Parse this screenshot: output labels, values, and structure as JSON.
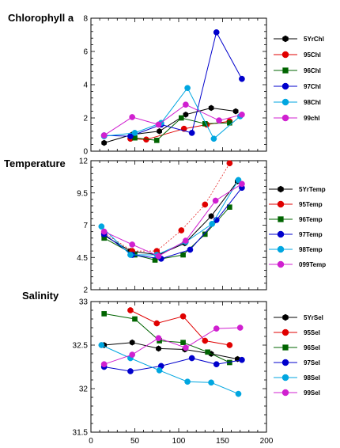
{
  "chart_data": [
    {
      "type": "line",
      "title": "Chlorophyll a",
      "xlim": [
        0,
        200
      ],
      "ylim": [
        0,
        8
      ],
      "yticks": [
        "0",
        "2",
        "4",
        "6",
        "8"
      ],
      "xticks": [],
      "legend_position": "right",
      "series": [
        {
          "name": "5YrChl",
          "color": "#000000",
          "marker": "hexagon",
          "dashed": false,
          "x": [
            15,
            47,
            78,
            108,
            137,
            165
          ],
          "y": [
            0.5,
            1.0,
            1.2,
            2.2,
            2.6,
            2.4
          ]
        },
        {
          "name": "95Chl",
          "color": "#e00000",
          "marker": "circle",
          "dashed": false,
          "x": [
            45,
            63,
            106,
            132,
            158
          ],
          "y": [
            0.75,
            0.7,
            1.35,
            1.6,
            1.8
          ]
        },
        {
          "name": "96Chl",
          "color": "#006400",
          "marker": "square",
          "dashed": false,
          "x": [
            50,
            75,
            103,
            130,
            158
          ],
          "y": [
            0.8,
            0.65,
            2.0,
            1.65,
            1.7
          ]
        },
        {
          "name": "97Chl",
          "color": "#0000cc",
          "marker": "circle",
          "dashed": false,
          "x": [
            15,
            45,
            80,
            115,
            143,
            172
          ],
          "y": [
            0.95,
            0.9,
            1.6,
            1.1,
            7.15,
            4.35
          ]
        },
        {
          "name": "98Chl",
          "color": "#00a6e0",
          "marker": "circle",
          "dashed": false,
          "x": [
            15,
            50,
            80,
            110,
            140,
            170
          ],
          "y": [
            0.9,
            1.1,
            1.7,
            3.8,
            0.75,
            2.1
          ]
        },
        {
          "name": "99chl",
          "color": "#d020d0",
          "marker": "circle",
          "dashed": false,
          "x": [
            15,
            47,
            77,
            108,
            146,
            172
          ],
          "y": [
            0.95,
            2.05,
            1.6,
            2.8,
            1.85,
            2.2
          ]
        }
      ]
    },
    {
      "type": "line",
      "title": "Temperature",
      "xlim": [
        0,
        200
      ],
      "ylim": [
        2,
        12
      ],
      "yticks": [
        "2",
        "4.5",
        "7",
        "9.5",
        "12"
      ],
      "xticks": [],
      "legend_position": "right",
      "series": [
        {
          "name": "5YrTemp",
          "color": "#000000",
          "marker": "hexagon",
          "dashed": false,
          "x": [
            15,
            45,
            77,
            107,
            137,
            167
          ],
          "y": [
            6.2,
            5.0,
            4.7,
            5.6,
            7.7,
            10.4
          ]
        },
        {
          "name": "95Temp",
          "color": "#e00000",
          "marker": "circle",
          "dashed": true,
          "x": [
            15,
            47,
            75,
            103,
            130,
            158
          ],
          "y": [
            6.4,
            5.0,
            5.0,
            6.6,
            8.6,
            11.8
          ]
        },
        {
          "name": "96Temp",
          "color": "#006400",
          "marker": "square",
          "dashed": false,
          "x": [
            15,
            50,
            73,
            105,
            130,
            158
          ],
          "y": [
            6.0,
            4.7,
            4.3,
            4.7,
            6.3,
            8.4
          ]
        },
        {
          "name": "97Temp",
          "color": "#0000cc",
          "marker": "circle",
          "dashed": false,
          "x": [
            15,
            47,
            80,
            113,
            143,
            172
          ],
          "y": [
            6.3,
            4.7,
            4.4,
            5.1,
            7.4,
            9.9
          ]
        },
        {
          "name": "98Temp",
          "color": "#00a6e0",
          "marker": "circle",
          "dashed": false,
          "x": [
            12,
            45,
            75,
            108,
            138,
            168
          ],
          "y": [
            6.9,
            4.7,
            4.7,
            5.7,
            7.1,
            10.5
          ]
        },
        {
          "name": "099Temp",
          "color": "#d020d0",
          "marker": "circle",
          "dashed": false,
          "x": [
            15,
            47,
            77,
            108,
            142,
            172
          ],
          "y": [
            6.5,
            5.5,
            4.6,
            5.8,
            8.9,
            10.2
          ]
        }
      ]
    },
    {
      "type": "line",
      "title": "Salinity",
      "xlim": [
        0,
        200
      ],
      "ylim": [
        31.5,
        33
      ],
      "yticks": [
        "31.5",
        "32",
        "32.5",
        "33"
      ],
      "xticks": [
        "0",
        "50",
        "100",
        "150",
        "200"
      ],
      "legend_position": "right",
      "series": [
        {
          "name": "5YrSel",
          "color": "#000000",
          "marker": "hexagon",
          "dashed": false,
          "x": [
            15,
            47,
            77,
            107,
            137,
            167
          ],
          "y": [
            32.5,
            32.53,
            32.46,
            32.45,
            32.4,
            32.34
          ]
        },
        {
          "name": "95Sel",
          "color": "#e00000",
          "marker": "circle",
          "dashed": false,
          "x": [
            45,
            75,
            105,
            130,
            158
          ],
          "y": [
            32.9,
            32.75,
            32.83,
            32.55,
            32.5
          ]
        },
        {
          "name": "96Sel",
          "color": "#006400",
          "marker": "square",
          "dashed": false,
          "x": [
            15,
            50,
            78,
            105,
            133,
            158
          ],
          "y": [
            32.86,
            32.8,
            32.55,
            32.53,
            32.42,
            32.3
          ]
        },
        {
          "name": "97Sel",
          "color": "#0000cc",
          "marker": "circle",
          "dashed": false,
          "x": [
            15,
            45,
            80,
            115,
            143,
            172
          ],
          "y": [
            32.25,
            32.2,
            32.26,
            32.35,
            32.28,
            32.33
          ]
        },
        {
          "name": "98Sel",
          "color": "#00a6e0",
          "marker": "circle",
          "dashed": false,
          "x": [
            12,
            45,
            78,
            110,
            137,
            168
          ],
          "y": [
            32.5,
            32.35,
            32.21,
            32.08,
            32.07,
            31.94
          ]
        },
        {
          "name": "99Sel",
          "color": "#d020d0",
          "marker": "circle",
          "dashed": false,
          "x": [
            15,
            47,
            77,
            108,
            143,
            170
          ],
          "y": [
            32.28,
            32.39,
            32.58,
            32.47,
            32.69,
            32.7
          ]
        }
      ]
    }
  ]
}
